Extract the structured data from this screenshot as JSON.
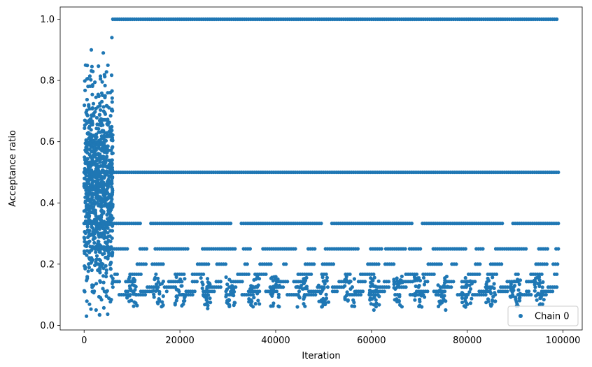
{
  "chart_data": {
    "type": "scatter",
    "title": "",
    "xlabel": "Iteration",
    "ylabel": "Acceptance ratio",
    "xlim": [
      -5000,
      104000
    ],
    "ylim": [
      -0.015,
      1.04
    ],
    "xticks": [
      0,
      20000,
      40000,
      60000,
      80000,
      100000
    ],
    "xtick_labels": [
      "0",
      "20000",
      "40000",
      "60000",
      "80000",
      "100000"
    ],
    "yticks": [
      0.0,
      0.2,
      0.4,
      0.6,
      0.8,
      1.0
    ],
    "ytick_labels": [
      "0.0",
      "0.2",
      "0.4",
      "0.6",
      "0.8",
      "1.0"
    ],
    "grid": false,
    "legend": {
      "position": "lower right",
      "entries": [
        "Chain 0"
      ]
    },
    "series": [
      {
        "name": "Chain 0",
        "color": "#1f77b4",
        "marker": "circle",
        "bands": [
          {
            "y": 1.0,
            "x_range": [
              6000,
              99000
            ]
          },
          {
            "y": 0.5,
            "x_range": [
              0,
              99000
            ]
          },
          {
            "y": 0.333,
            "x_range": [
              0,
              99000
            ]
          },
          {
            "y": 0.25,
            "x_range": [
              0,
              99000
            ]
          },
          {
            "y": 0.2,
            "x_range": [
              3000,
              99000
            ]
          },
          {
            "y": 0.167,
            "x_range": [
              6000,
              99000
            ]
          },
          {
            "y": 0.143,
            "x_range": [
              6000,
              99000
            ]
          },
          {
            "y": 0.125,
            "x_range": [
              6000,
              99000
            ]
          },
          {
            "y": 0.111,
            "x_range": [
              6000,
              99000
            ]
          },
          {
            "y": 0.1,
            "x_range": [
              6000,
              99000
            ]
          }
        ],
        "burn_in_cloud": {
          "x_range": [
            0,
            6000
          ],
          "y_range": [
            0.03,
            0.9
          ]
        },
        "sample_points": [
          {
            "x": 1500,
            "y": 0.9
          },
          {
            "x": 4000,
            "y": 0.89
          },
          {
            "x": 5800,
            "y": 0.94
          },
          {
            "x": 300,
            "y": 0.85
          },
          {
            "x": 500,
            "y": 0.03
          },
          {
            "x": 2500,
            "y": 0.05
          },
          {
            "x": 25800,
            "y": 0.055
          },
          {
            "x": 60500,
            "y": 0.05
          },
          {
            "x": 75500,
            "y": 0.05
          }
        ]
      }
    ]
  }
}
